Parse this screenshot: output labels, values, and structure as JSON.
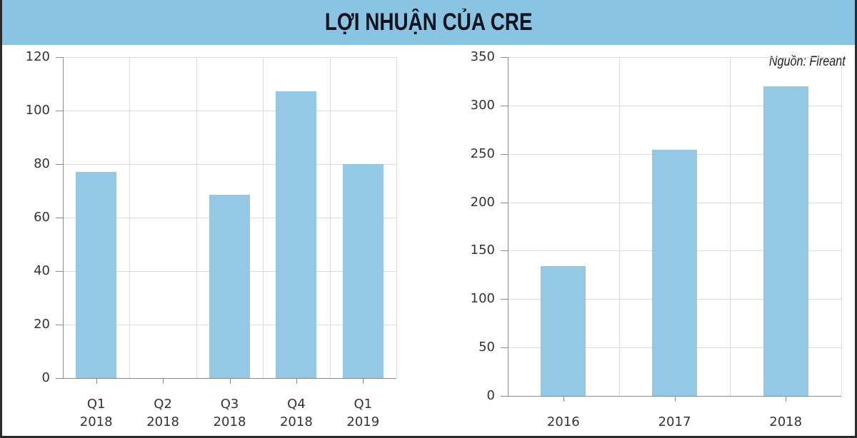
{
  "title": "LỢI NHUẬN CỦA CRE",
  "source": "Nguồn: Fireant",
  "colors": {
    "banner": "#8bc3e2",
    "bar": "#93c9e5",
    "title_text": "#0c1420"
  },
  "chart_data": [
    {
      "type": "bar",
      "title": "",
      "categories": [
        "Q1 2018",
        "Q2 2018",
        "Q3 2018",
        "Q4 2018",
        "Q1 2019"
      ],
      "category_lines": [
        [
          "Q1",
          "2018"
        ],
        [
          "Q2",
          "2018"
        ],
        [
          "Q3",
          "2018"
        ],
        [
          "Q4",
          "2018"
        ],
        [
          "Q1",
          "2019"
        ]
      ],
      "values": [
        77,
        0,
        68.6,
        107.3,
        80
      ],
      "xlabel": "",
      "ylabel": "",
      "ylim": [
        0,
        120
      ],
      "yticks": [
        "0",
        "20",
        "40",
        "60",
        "80",
        "100",
        "120"
      ],
      "grid": true,
      "legend": "none"
    },
    {
      "type": "bar",
      "title": "",
      "categories": [
        "2016",
        "2017",
        "2018"
      ],
      "values": [
        134,
        254,
        320
      ],
      "xlabel": "",
      "ylabel": "",
      "ylim": [
        0,
        350
      ],
      "yticks": [
        "0",
        "50",
        "100",
        "150",
        "200",
        "250",
        "300",
        "350"
      ],
      "grid": true,
      "legend": "none"
    }
  ]
}
